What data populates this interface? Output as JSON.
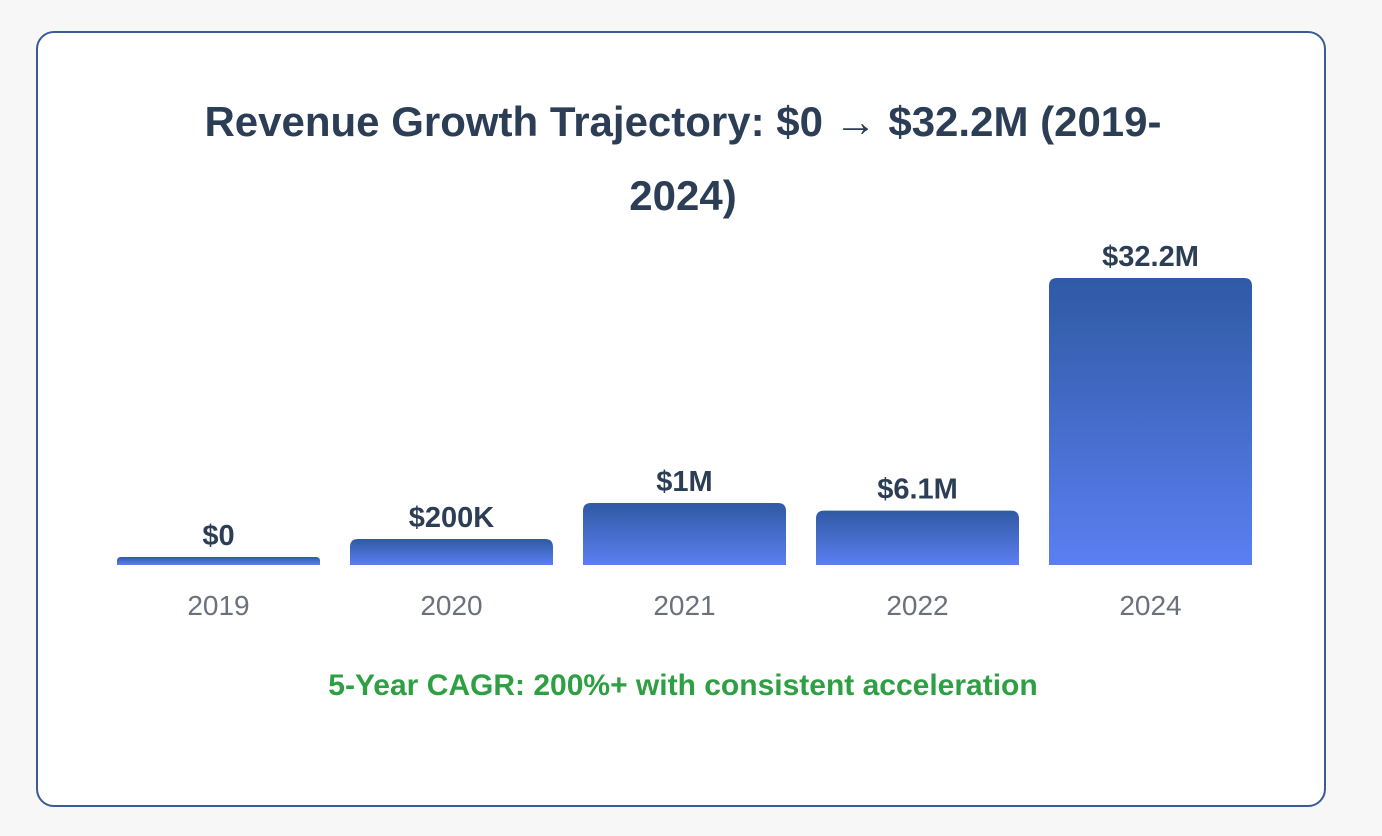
{
  "chart_data": {
    "type": "bar",
    "title_line1": "Revenue Growth Trajectory: $0 → $32.2M (2019-",
    "title_line2": "2024)",
    "categories": [
      "2019",
      "2020",
      "2021",
      "2022",
      "2024"
    ],
    "values": [
      0,
      0.2,
      1,
      6.1,
      32.2
    ],
    "value_labels": [
      "$0",
      "$200K",
      "$1M",
      "$6.1M",
      "$32.2M"
    ],
    "units": "USD millions",
    "xlabel": "",
    "ylabel": "",
    "ylim": [
      0,
      32.2
    ],
    "grid": false,
    "legend": "none",
    "colors": {
      "bar_top": "#2f5aa3",
      "bar_bottom": "#5b7ff2",
      "title": "#2c3e55",
      "footnote": "#2ea043",
      "border": "#3a5b94"
    },
    "footnote": "5-Year CAGR: 200%+ with consistent acceleration"
  }
}
